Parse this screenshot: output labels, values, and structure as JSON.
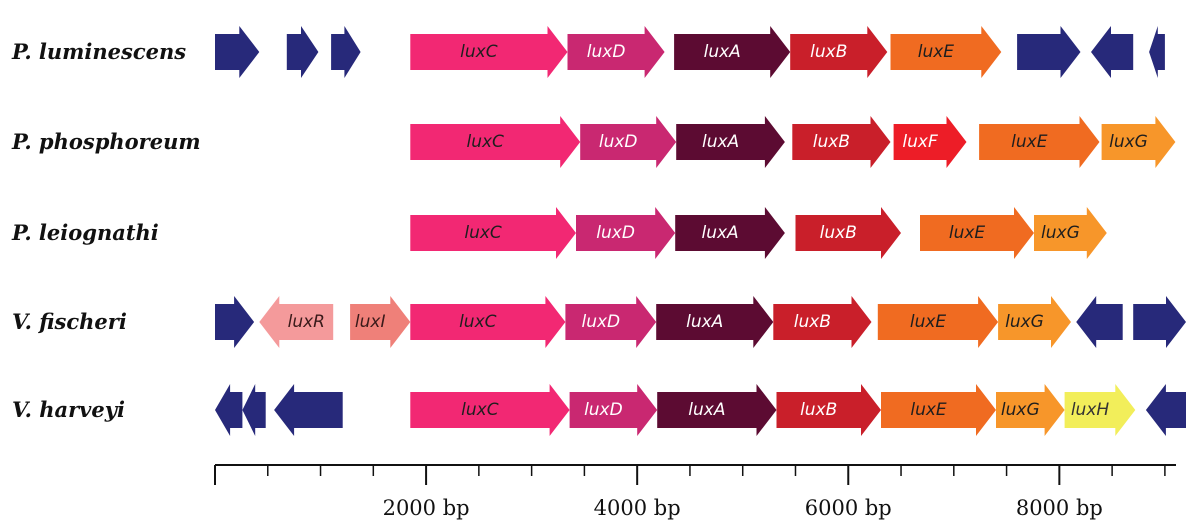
{
  "colors": {
    "flanking": "#27297a",
    "luxC": "#f22873",
    "luxD": "#c92871",
    "luxA": "#5c0b32",
    "luxB": "#c91f2a",
    "luxE": "#f06b21",
    "luxF": "#ed1d27",
    "luxG": "#f7962a",
    "luxH": "#f2ee5a",
    "luxR": "#f49a9b",
    "luxI": "#ef8079"
  },
  "axis": {
    "min_bp": 0,
    "max_bp": 9200,
    "major_ticks": [
      2000,
      4000,
      6000,
      8000
    ],
    "minor_step_bp": 500,
    "tick_labels": [
      "2000 bp",
      "4000 bp",
      "6000 bp",
      "8000 bp"
    ]
  },
  "operons": [
    {
      "species": "P. luminescens",
      "genes": [
        {
          "label": "",
          "type": "flanking",
          "start": 0,
          "end": 420,
          "dir": "+"
        },
        {
          "label": "",
          "type": "flanking",
          "start": 680,
          "end": 980,
          "dir": "+"
        },
        {
          "label": "",
          "type": "flanking",
          "start": 1100,
          "end": 1380,
          "dir": "+"
        },
        {
          "label": "luxC",
          "type": "luxC",
          "start": 1850,
          "end": 3340,
          "dir": "+"
        },
        {
          "label": "luxD",
          "type": "luxD",
          "start": 3340,
          "end": 4260,
          "dir": "+"
        },
        {
          "label": "luxA",
          "type": "luxA",
          "start": 4350,
          "end": 5450,
          "dir": "+"
        },
        {
          "label": "luxB",
          "type": "luxB",
          "start": 5450,
          "end": 6370,
          "dir": "+"
        },
        {
          "label": "luxE",
          "type": "luxE",
          "start": 6400,
          "end": 7450,
          "dir": "+"
        },
        {
          "label": "",
          "type": "flanking",
          "start": 7600,
          "end": 8200,
          "dir": "+"
        },
        {
          "label": "",
          "type": "flanking",
          "start": 8300,
          "end": 8700,
          "dir": "-"
        },
        {
          "label": "",
          "type": "flanking",
          "start": 8850,
          "end": 9000,
          "dir": "-"
        }
      ]
    },
    {
      "species": "P. phosphoreum",
      "genes": [
        {
          "label": "luxC",
          "type": "luxC",
          "start": 1850,
          "end": 3460,
          "dir": "+"
        },
        {
          "label": "luxD",
          "type": "luxD",
          "start": 3460,
          "end": 4370,
          "dir": "+"
        },
        {
          "label": "luxA",
          "type": "luxA",
          "start": 4370,
          "end": 5400,
          "dir": "+"
        },
        {
          "label": "luxB",
          "type": "luxB",
          "start": 5470,
          "end": 6400,
          "dir": "+"
        },
        {
          "label": "luxF",
          "type": "luxF",
          "start": 6430,
          "end": 7120,
          "dir": "+"
        },
        {
          "label": "luxE",
          "type": "luxE",
          "start": 7240,
          "end": 8380,
          "dir": "+"
        },
        {
          "label": "luxG",
          "type": "luxG",
          "start": 8400,
          "end": 9100,
          "dir": "+"
        }
      ]
    },
    {
      "species": "P. leiognathi",
      "genes": [
        {
          "label": "luxC",
          "type": "luxC",
          "start": 1850,
          "end": 3420,
          "dir": "+"
        },
        {
          "label": "luxD",
          "type": "luxD",
          "start": 3420,
          "end": 4360,
          "dir": "+"
        },
        {
          "label": "luxA",
          "type": "luxA",
          "start": 4360,
          "end": 5400,
          "dir": "+"
        },
        {
          "label": "luxB",
          "type": "luxB",
          "start": 5500,
          "end": 6500,
          "dir": "+"
        },
        {
          "label": "luxE",
          "type": "luxE",
          "start": 6680,
          "end": 7760,
          "dir": "+"
        },
        {
          "label": "luxG",
          "type": "luxG",
          "start": 7760,
          "end": 8450,
          "dir": "+"
        }
      ]
    },
    {
      "species": "V. fischeri",
      "genes": [
        {
          "label": "",
          "type": "flanking",
          "start": 0,
          "end": 370,
          "dir": "+"
        },
        {
          "label": "luxR",
          "type": "luxR",
          "start": 420,
          "end": 1120,
          "dir": "-"
        },
        {
          "label": "luxI",
          "type": "luxI",
          "start": 1280,
          "end": 1850,
          "dir": "+"
        },
        {
          "label": "luxC",
          "type": "luxC",
          "start": 1850,
          "end": 3320,
          "dir": "+"
        },
        {
          "label": "luxD",
          "type": "luxD",
          "start": 3320,
          "end": 4180,
          "dir": "+"
        },
        {
          "label": "luxA",
          "type": "luxA",
          "start": 4180,
          "end": 5290,
          "dir": "+"
        },
        {
          "label": "luxB",
          "type": "luxB",
          "start": 5290,
          "end": 6220,
          "dir": "+"
        },
        {
          "label": "luxE",
          "type": "luxE",
          "start": 6280,
          "end": 7420,
          "dir": "+"
        },
        {
          "label": "luxG",
          "type": "luxG",
          "start": 7420,
          "end": 8110,
          "dir": "+"
        },
        {
          "label": "",
          "type": "flanking",
          "start": 8160,
          "end": 8600,
          "dir": "-"
        },
        {
          "label": "",
          "type": "flanking",
          "start": 8700,
          "end": 9200,
          "dir": "+"
        }
      ]
    },
    {
      "species": "V. harveyi",
      "genes": [
        {
          "label": "",
          "type": "flanking",
          "start": 0,
          "end": 260,
          "dir": "-"
        },
        {
          "label": "",
          "type": "flanking",
          "start": 260,
          "end": 480,
          "dir": "-"
        },
        {
          "label": "",
          "type": "flanking",
          "start": 560,
          "end": 1210,
          "dir": "-"
        },
        {
          "label": "luxC",
          "type": "luxC",
          "start": 1850,
          "end": 3360,
          "dir": "+"
        },
        {
          "label": "luxD",
          "type": "luxD",
          "start": 3360,
          "end": 4190,
          "dir": "+"
        },
        {
          "label": "luxA",
          "type": "luxA",
          "start": 4190,
          "end": 5320,
          "dir": "+"
        },
        {
          "label": "luxB",
          "type": "luxB",
          "start": 5320,
          "end": 6310,
          "dir": "+"
        },
        {
          "label": "luxE",
          "type": "luxE",
          "start": 6310,
          "end": 7400,
          "dir": "+"
        },
        {
          "label": "luxG",
          "type": "luxG",
          "start": 7400,
          "end": 8050,
          "dir": "+"
        },
        {
          "label": "luxH",
          "type": "luxH",
          "start": 8050,
          "end": 8720,
          "dir": "+"
        },
        {
          "label": "",
          "type": "flanking",
          "start": 8820,
          "end": 9200,
          "dir": "-"
        }
      ]
    }
  ]
}
